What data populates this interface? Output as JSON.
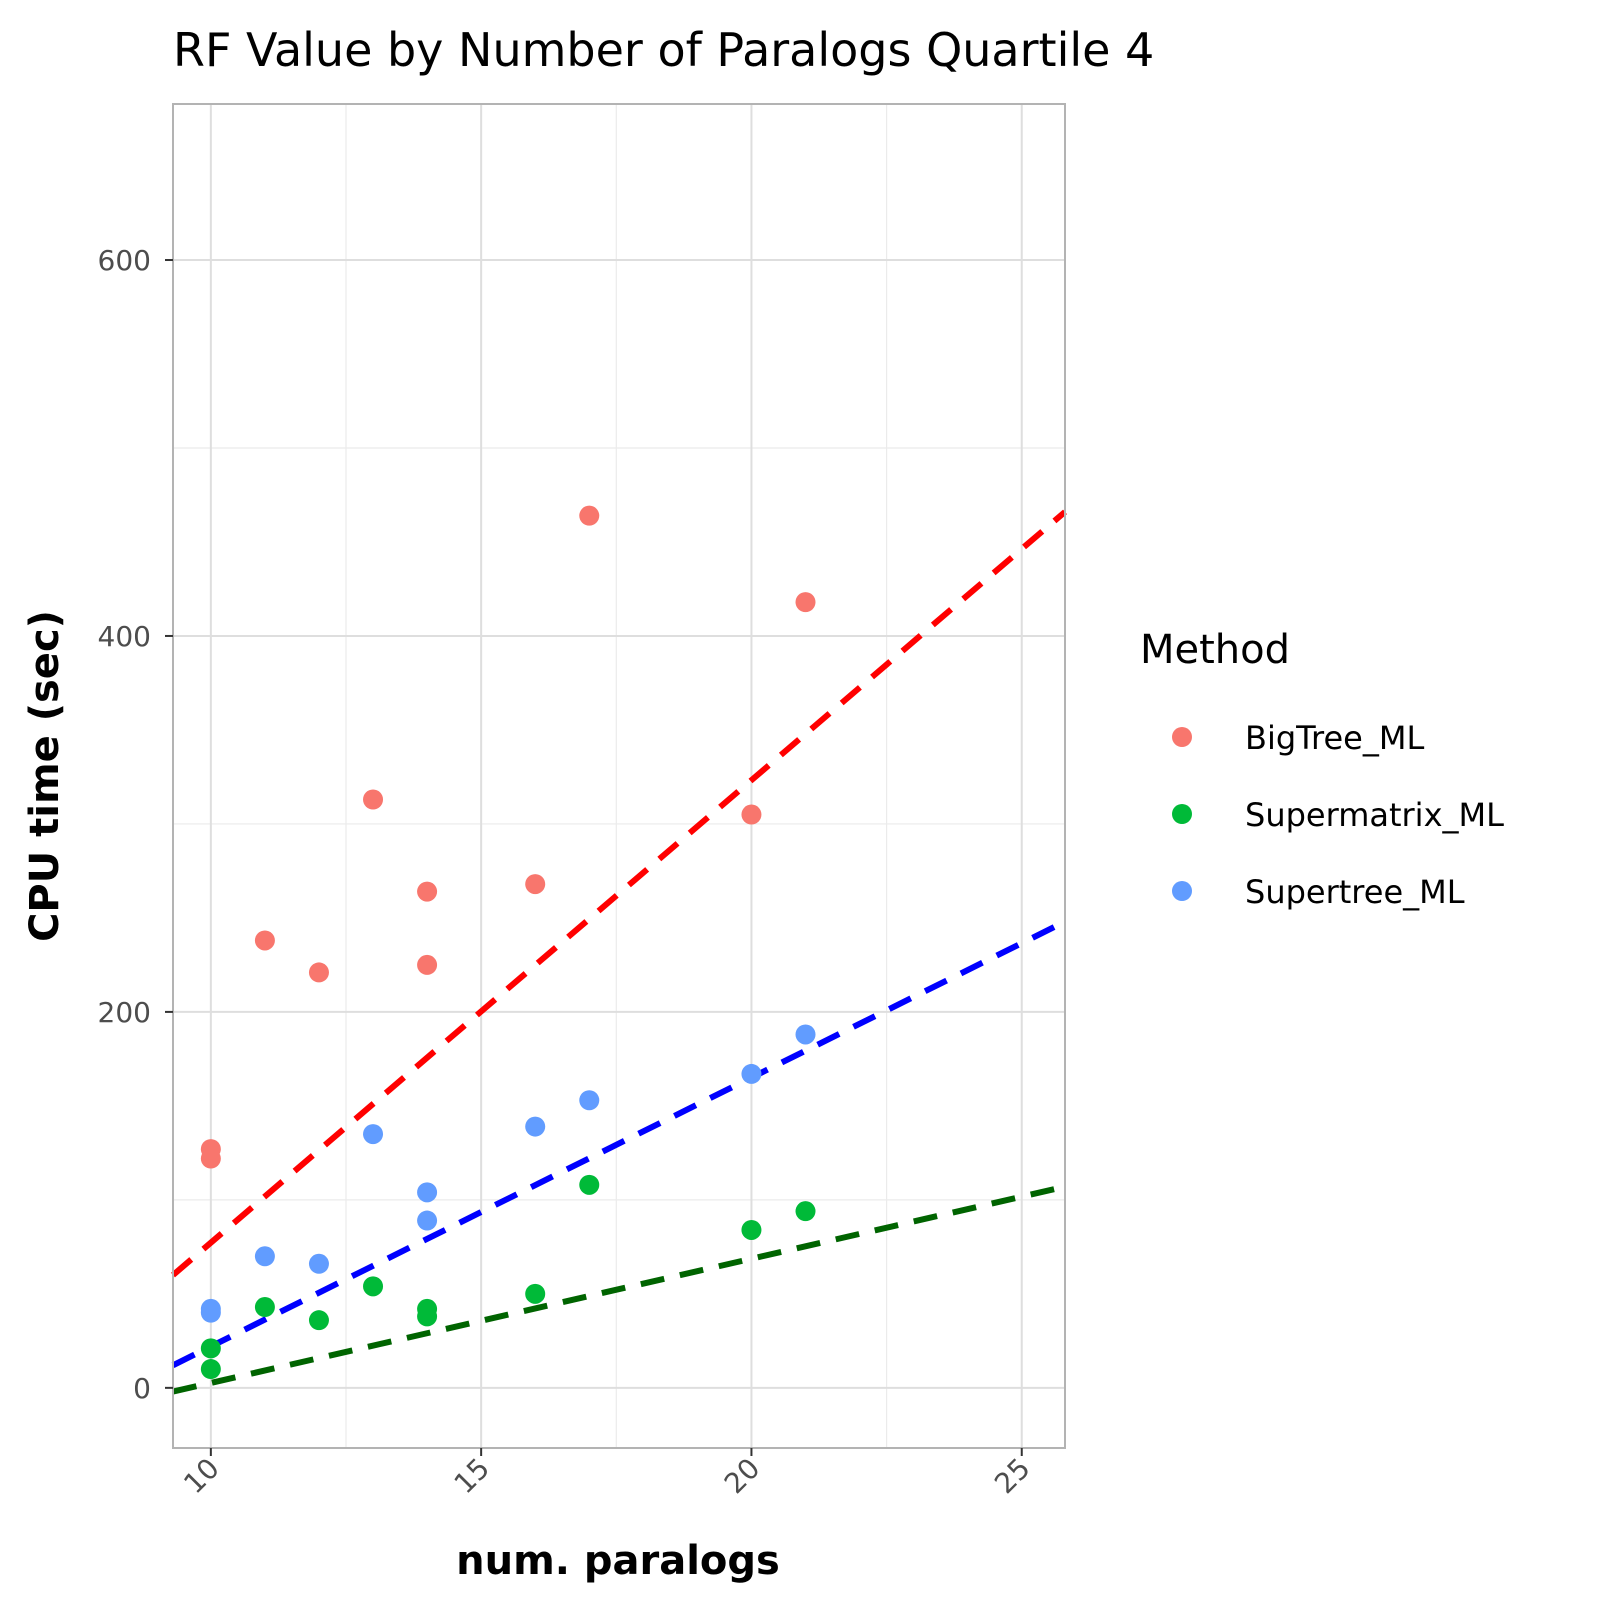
{
  "chart_data": {
    "type": "scatter",
    "title": "RF Value by Number of Paralogs Quartile 4",
    "xlabel": "num. paralogs",
    "ylabel": "CPU time (sec)",
    "xlim": [
      9.3,
      25.8
    ],
    "ylim": [
      -32,
      683
    ],
    "x_ticks": [
      10,
      15,
      20,
      25
    ],
    "y_ticks": [
      0,
      200,
      400,
      600
    ],
    "x_minor_grid": [
      12.5,
      17.5,
      22.5
    ],
    "y_minor_grid": [
      100,
      300,
      500
    ],
    "grid": true,
    "legend": {
      "title": "Method",
      "position": "right"
    },
    "series": [
      {
        "name": "BigTree_ML",
        "color": "#F8766D",
        "points": [
          {
            "x": 10,
            "y": 127
          },
          {
            "x": 10,
            "y": 122
          },
          {
            "x": 11,
            "y": 238
          },
          {
            "x": 12,
            "y": 221
          },
          {
            "x": 13,
            "y": 313
          },
          {
            "x": 14,
            "y": 264
          },
          {
            "x": 14,
            "y": 225
          },
          {
            "x": 16,
            "y": 268
          },
          {
            "x": 17,
            "y": 464
          },
          {
            "x": 20,
            "y": 305
          },
          {
            "x": 21,
            "y": 418
          }
        ],
        "trend": {
          "color": "#FF0000",
          "x": [
            9.3,
            25.8
          ],
          "y": [
            60,
            466
          ]
        }
      },
      {
        "name": "Supermatrix_ML",
        "color": "#00BA38",
        "points": [
          {
            "x": 10,
            "y": 21
          },
          {
            "x": 10,
            "y": 10
          },
          {
            "x": 11,
            "y": 43
          },
          {
            "x": 12,
            "y": 36
          },
          {
            "x": 13,
            "y": 54
          },
          {
            "x": 14,
            "y": 42
          },
          {
            "x": 14,
            "y": 38
          },
          {
            "x": 16,
            "y": 50
          },
          {
            "x": 17,
            "y": 108
          },
          {
            "x": 20,
            "y": 84
          },
          {
            "x": 21,
            "y": 94
          }
        ],
        "trend": {
          "color": "#006400",
          "x": [
            9.3,
            25.8
          ],
          "y": [
            -2,
            107
          ]
        }
      },
      {
        "name": "Supertree_ML",
        "color": "#619CFF",
        "points": [
          {
            "x": 10,
            "y": 42
          },
          {
            "x": 10,
            "y": 40
          },
          {
            "x": 11,
            "y": 70
          },
          {
            "x": 12,
            "y": 66
          },
          {
            "x": 13,
            "y": 135
          },
          {
            "x": 14,
            "y": 104
          },
          {
            "x": 14,
            "y": 89
          },
          {
            "x": 16,
            "y": 139
          },
          {
            "x": 17,
            "y": 153
          },
          {
            "x": 20,
            "y": 167
          },
          {
            "x": 21,
            "y": 188
          }
        ],
        "trend": {
          "color": "#0000FF",
          "x": [
            9.3,
            25.8
          ],
          "y": [
            12,
            248
          ]
        }
      }
    ]
  }
}
